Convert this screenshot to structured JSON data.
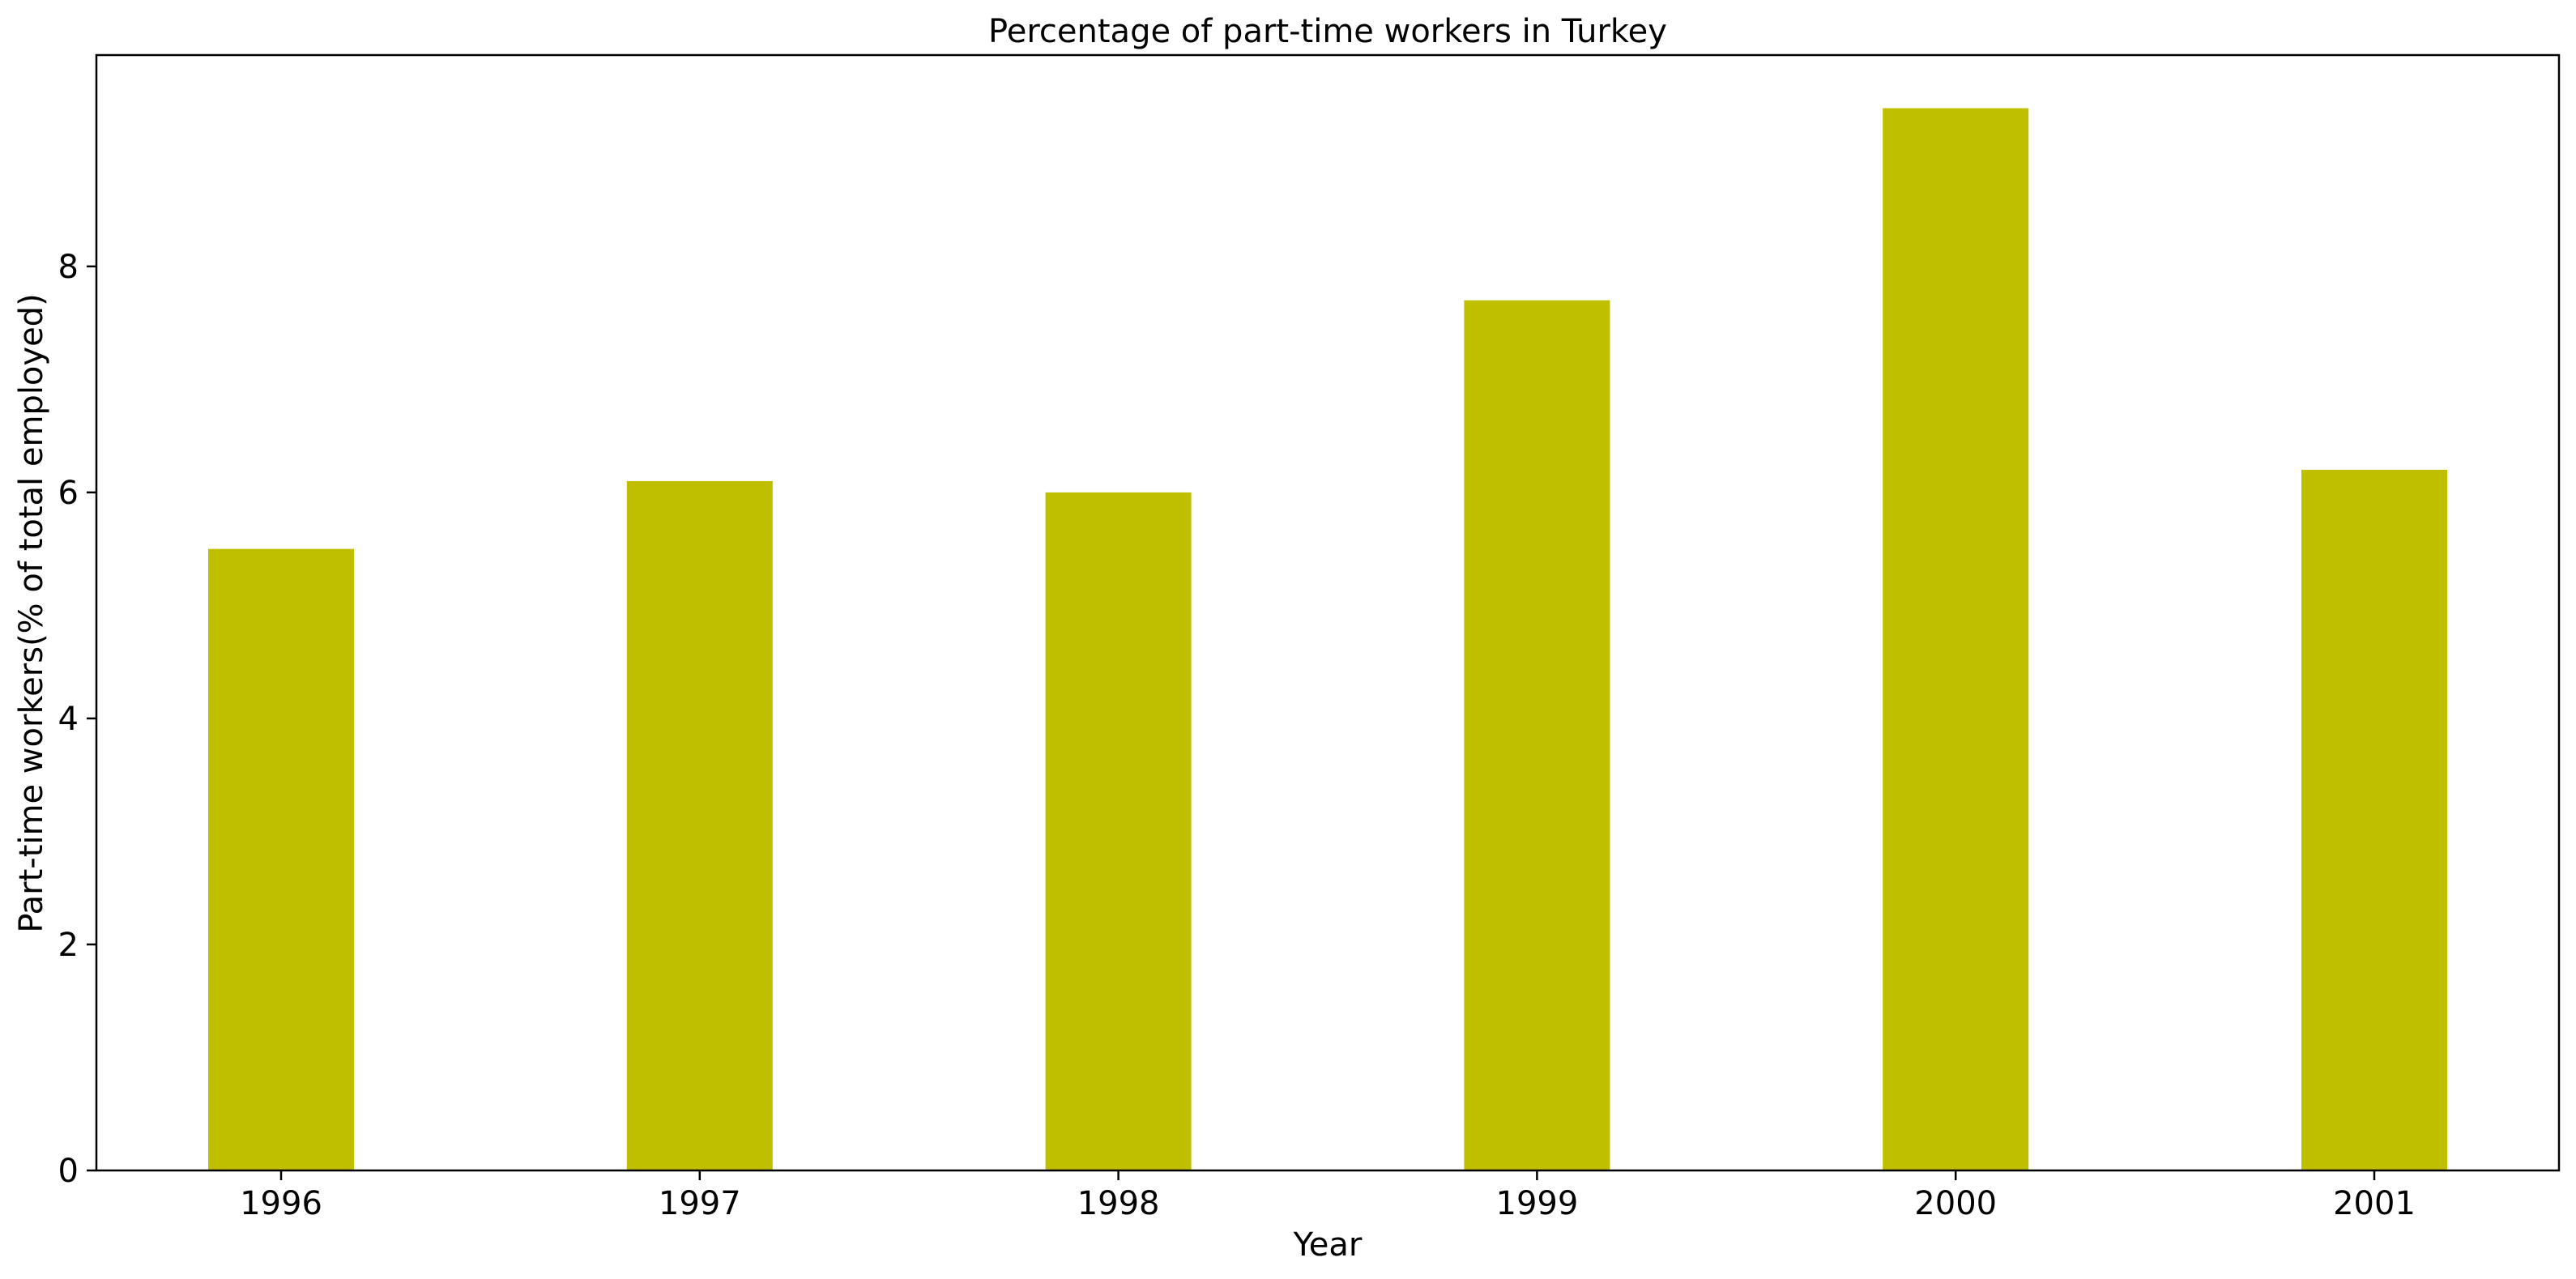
{
  "chart_data": {
    "type": "bar",
    "title": "Percentage of part-time workers in Turkey",
    "xlabel": "Year",
    "ylabel": "Part-time workers(% of total employed)",
    "categories": [
      "1996",
      "1997",
      "1998",
      "1999",
      "2000",
      "2001"
    ],
    "values": [
      5.5,
      6.1,
      6.0,
      7.7,
      9.4,
      6.2
    ],
    "yticks": [
      0,
      2,
      4,
      6,
      8
    ],
    "ylim": [
      0,
      9.87
    ],
    "grid": false,
    "legend": "none",
    "bar_color": "#bfbf00"
  }
}
